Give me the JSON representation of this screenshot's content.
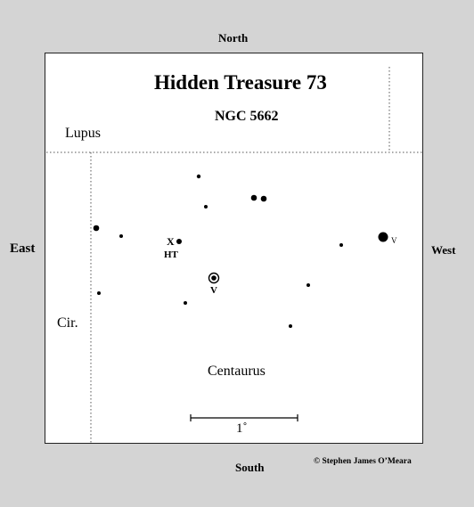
{
  "compass": {
    "north": "North",
    "south": "South",
    "east": "East",
    "west": "West"
  },
  "chart": {
    "title": "Hidden Treasure 73",
    "subtitle": "NGC 5662",
    "constellations": {
      "lupus": "Lupus",
      "circinus": "Cir.",
      "centaurus": "Centaurus"
    },
    "target_marker": "X",
    "target_label": "HT",
    "variable_label": "V",
    "variable_label_small": "V",
    "scale_label": "1˚",
    "credit": "© Stephen James O’Meara"
  },
  "colors": {
    "background": "#d4d4d4",
    "chart_background": "#ffffff",
    "ink": "#000000"
  }
}
